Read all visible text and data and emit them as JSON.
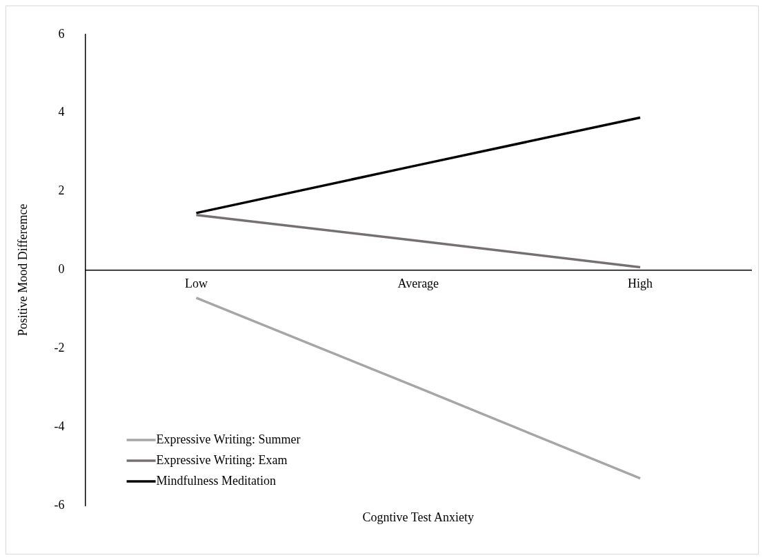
{
  "chart_data": {
    "type": "line",
    "xlabel": "Cogntive Test Anxiety",
    "ylabel": "Positive Mood Differemce",
    "categories": [
      "Low",
      "Average",
      "High"
    ],
    "series": [
      {
        "name": "Expressive Writing: Summer",
        "color": "#a6a6a6",
        "values": [
          -0.71,
          -3.0,
          -5.31
        ]
      },
      {
        "name": "Expressive Writing: Exam",
        "color": "#767171",
        "values": [
          1.4,
          0.74,
          0.07
        ]
      },
      {
        "name": "Mindfulness Meditation",
        "color": "#000000",
        "values": [
          1.45,
          2.67,
          3.88
        ]
      }
    ],
    "ylim": [
      -6,
      6
    ],
    "yticks": [
      -6,
      -4,
      -2,
      0,
      2,
      4,
      6
    ],
    "grid": false,
    "legend": "bottom left",
    "marker": "none",
    "line_style": "solid"
  }
}
